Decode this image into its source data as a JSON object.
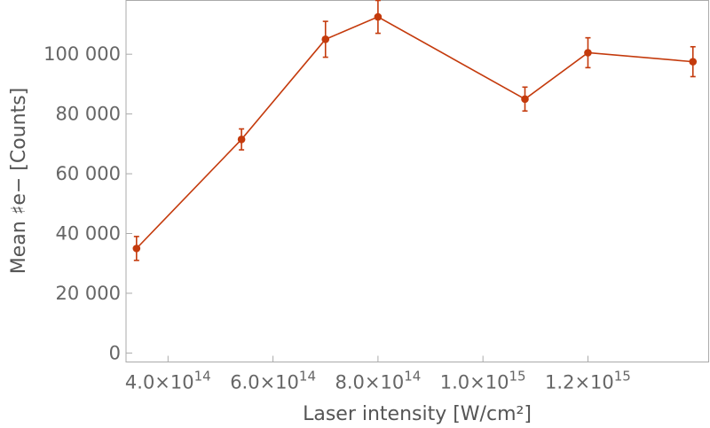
{
  "chart_data": {
    "type": "scatter",
    "xlabel": "Laser intensity [W/cm²]",
    "ylabel": "Mean ♯e− [Counts]",
    "xlim": [
      320000000000000.0,
      1430000000000000.0
    ],
    "ylim": [
      -3000,
      118000
    ],
    "grid": false,
    "x_ticks": [
      {
        "value": 400000000000000.0,
        "label": "4.0×10",
        "exp": "14"
      },
      {
        "value": 600000000000000.0,
        "label": "6.0×10",
        "exp": "14"
      },
      {
        "value": 800000000000000.0,
        "label": "8.0×10",
        "exp": "14"
      },
      {
        "value": 1000000000000000.0,
        "label": "1.0×10",
        "exp": "15"
      },
      {
        "value": 1200000000000000.0,
        "label": "1.2×10",
        "exp": "15"
      }
    ],
    "y_ticks": [
      {
        "value": 0,
        "label": "0"
      },
      {
        "value": 20000,
        "label": "20 000"
      },
      {
        "value": 40000,
        "label": "40 000"
      },
      {
        "value": 60000,
        "label": "60 000"
      },
      {
        "value": 80000,
        "label": "80 000"
      },
      {
        "value": 100000,
        "label": "100 000"
      }
    ],
    "series": [
      {
        "color": "#c43a0c",
        "points": [
          {
            "x": 340000000000000.0,
            "y": 35000,
            "err": 4000
          },
          {
            "x": 540000000000000.0,
            "y": 71500,
            "err": 3500
          },
          {
            "x": 700000000000000.0,
            "y": 105000,
            "err": 6000
          },
          {
            "x": 800000000000000.0,
            "y": 112500,
            "err": 5500
          },
          {
            "x": 1080000000000000.0,
            "y": 85000,
            "err": 4000
          },
          {
            "x": 1200000000000000.0,
            "y": 100500,
            "err": 5000
          },
          {
            "x": 1400000000000000.0,
            "y": 97500,
            "err": 5000
          }
        ]
      }
    ]
  }
}
